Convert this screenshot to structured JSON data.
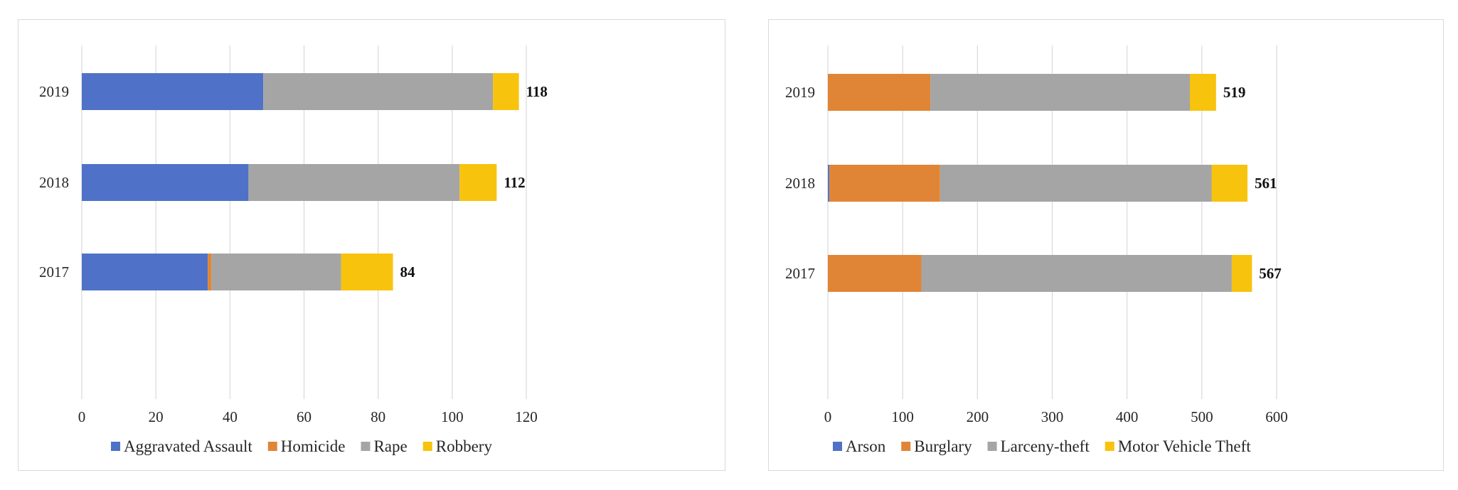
{
  "chart_data": [
    {
      "type": "bar",
      "orientation": "horizontal",
      "stacked": true,
      "categories": [
        "2017",
        "2018",
        "2019"
      ],
      "series": [
        {
          "name": "Aggravated Assault",
          "color": "#4f72c8",
          "values": [
            34,
            45,
            49
          ]
        },
        {
          "name": "Homicide",
          "color": "#e08535",
          "values": [
            1,
            0,
            0
          ]
        },
        {
          "name": "Rape",
          "color": "#a5a5a5",
          "values": [
            35,
            57,
            62
          ]
        },
        {
          "name": "Robbery",
          "color": "#f7c30d",
          "values": [
            14,
            10,
            7
          ]
        }
      ],
      "totals": [
        "84",
        "112",
        "118"
      ],
      "xlim": [
        0,
        120
      ],
      "xticks": [
        "0",
        "20",
        "40",
        "60",
        "80",
        "100",
        "120"
      ],
      "grid": true,
      "legend": "bottom"
    },
    {
      "type": "bar",
      "orientation": "horizontal",
      "stacked": true,
      "categories": [
        "2017",
        "2018",
        "2019"
      ],
      "series": [
        {
          "name": "Arson",
          "color": "#4f72c8",
          "values": [
            0,
            2,
            0
          ]
        },
        {
          "name": "Burglary",
          "color": "#e08535",
          "values": [
            125,
            148,
            137
          ]
        },
        {
          "name": "Larceny-theft",
          "color": "#a5a5a5",
          "values": [
            415,
            363,
            347
          ]
        },
        {
          "name": "Motor Vehicle Theft",
          "color": "#f7c30d",
          "values": [
            27,
            48,
            35
          ]
        }
      ],
      "totals": [
        "567",
        "561",
        "519"
      ],
      "xlim": [
        0,
        600
      ],
      "xticks": [
        "0",
        "100",
        "200",
        "300",
        "400",
        "500",
        "600"
      ],
      "grid": true,
      "legend": "bottom"
    }
  ]
}
